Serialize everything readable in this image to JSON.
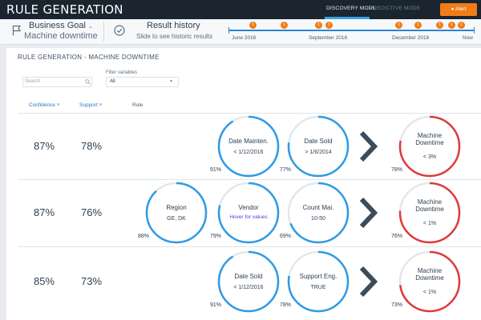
{
  "header": {
    "app_title": "RULE GENERATION",
    "modes": [
      "DISCOVERY MODE",
      "PREDICTIVE MODE"
    ],
    "alert_label": "Alert"
  },
  "goal": {
    "title": "Business Goal",
    "value": "Machine downtime"
  },
  "history": {
    "title": "Result history",
    "subtitle": "Slide to see historic results",
    "labels": [
      "June 2016",
      "September 2016",
      "December 2016",
      "Now"
    ],
    "dots": [
      "1",
      "1",
      "1",
      "1",
      "1",
      "1",
      "1",
      "1",
      "1"
    ]
  },
  "panel": {
    "title": "RULE GENERATION - MACHINE DOWNTIME",
    "search_placeholder": "Search",
    "filter_label": "Filter variables",
    "filter_value": "All",
    "columns": [
      "Confidence",
      "Support",
      "Rule"
    ]
  },
  "rows": [
    {
      "confidence": "87%",
      "support": "78%",
      "conditions": [
        {
          "name": "Date Mainten.",
          "value": "< 1/12/2016",
          "pct": "91%",
          "fill": 0.91
        },
        {
          "name": "Date Sold",
          "value": "> 1/6/2014",
          "pct": "77%",
          "fill": 0.77
        }
      ],
      "outcome": {
        "name": "Machine Downtime",
        "value": "< 3%",
        "pct": "78%",
        "fill": 0.78
      }
    },
    {
      "confidence": "87%",
      "support": "76%",
      "conditions": [
        {
          "name": "Region",
          "value": "GE, DK",
          "pct": "88%",
          "fill": 0.88
        },
        {
          "name": "Vendor",
          "value": "Hover for values",
          "pct": "79%",
          "fill": 0.79,
          "hover": true
        },
        {
          "name": "Count Mai.",
          "value": "10-50",
          "pct": "69%",
          "fill": 0.69
        }
      ],
      "outcome": {
        "name": "Machine Downtime",
        "value": "< 1%",
        "pct": "76%",
        "fill": 0.76
      }
    },
    {
      "confidence": "85%",
      "support": "73%",
      "conditions": [
        {
          "name": "Date Sold",
          "value": "< 1/12/2016",
          "pct": "91%",
          "fill": 0.91
        },
        {
          "name": "Support Eng.",
          "value": "TRUE",
          "pct": "78%",
          "fill": 0.78
        }
      ],
      "outcome": {
        "name": "Machine Downtime",
        "value": "< 1%",
        "pct": "73%",
        "fill": 0.73
      }
    }
  ],
  "colors": {
    "condition_ring": "#2f9be3",
    "outcome_ring": "#e23a3a",
    "accent": "#f07d17",
    "ring_track": "#e3e7eb"
  }
}
